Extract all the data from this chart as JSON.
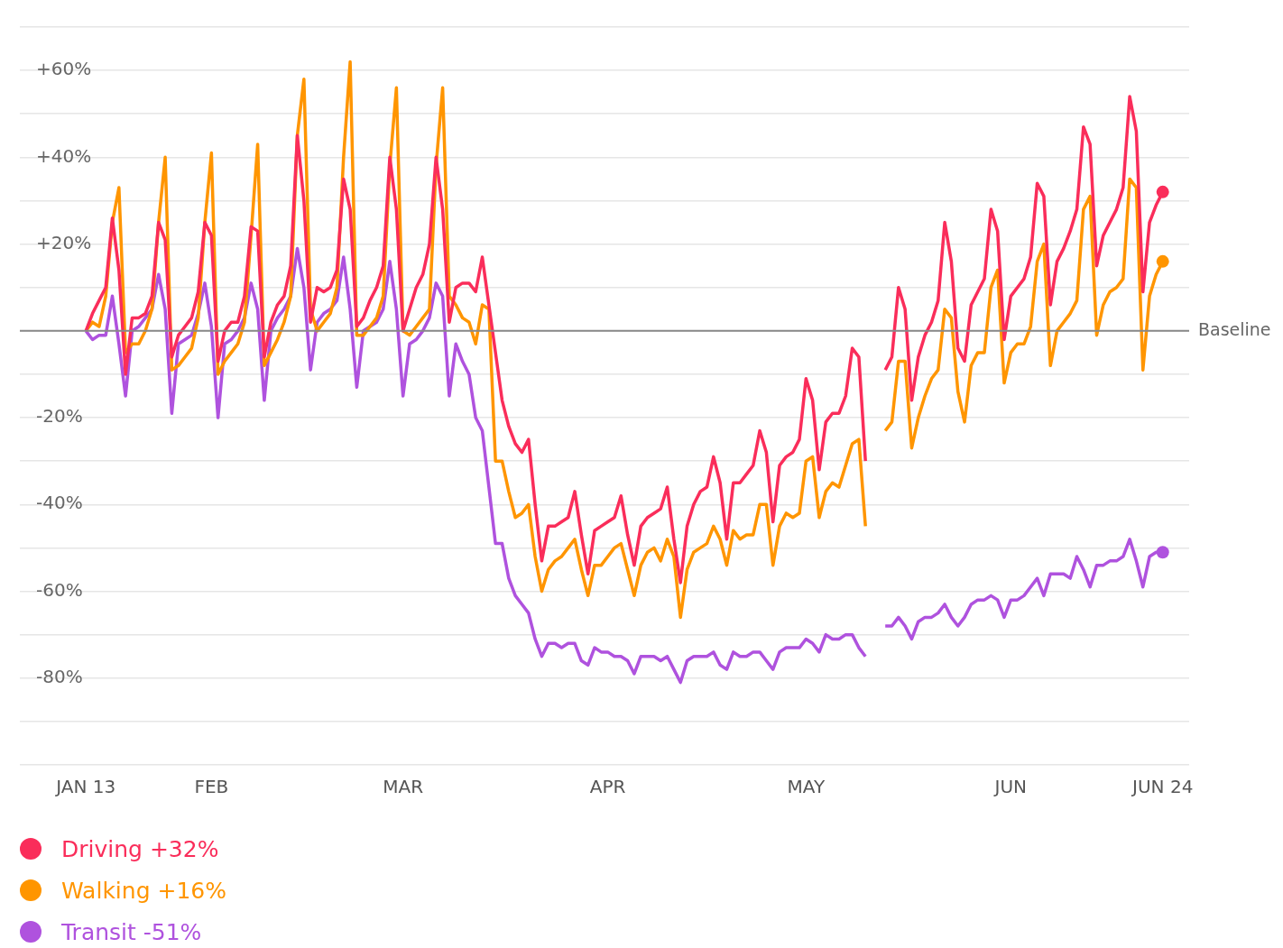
{
  "chart_data": {
    "type": "line",
    "x": [
      "--01-13",
      "--01-14",
      "--01-15",
      "--01-16",
      "--01-17",
      "--01-18",
      "--01-19",
      "--01-20",
      "--01-21",
      "--01-22",
      "--01-23",
      "--01-24",
      "--01-25",
      "--01-26",
      "--01-27",
      "--01-28",
      "--01-29",
      "--01-30",
      "--01-31",
      "--02-01",
      "--02-02",
      "--02-03",
      "--02-04",
      "--02-05",
      "--02-06",
      "--02-07",
      "--02-08",
      "--02-09",
      "--02-10",
      "--02-11",
      "--02-12",
      "--02-13",
      "--02-14",
      "--02-15",
      "--02-16",
      "--02-17",
      "--02-18",
      "--02-19",
      "--02-20",
      "--02-21",
      "--02-22",
      "--02-23",
      "--02-24",
      "--02-25",
      "--02-26",
      "--02-27",
      "--02-28",
      "--02-29",
      "--03-01",
      "--03-02",
      "--03-03",
      "--03-04",
      "--03-05",
      "--03-06",
      "--03-07",
      "--03-08",
      "--03-09",
      "--03-10",
      "--03-11",
      "--03-12",
      "--03-13",
      "--03-14",
      "--03-15",
      "--03-16",
      "--03-17",
      "--03-18",
      "--03-19",
      "--03-20",
      "--03-21",
      "--03-22",
      "--03-23",
      "--03-24",
      "--03-25",
      "--03-26",
      "--03-27",
      "--03-28",
      "--03-29",
      "--03-30",
      "--03-31",
      "--04-01",
      "--04-02",
      "--04-03",
      "--04-04",
      "--04-05",
      "--04-06",
      "--04-07",
      "--04-08",
      "--04-09",
      "--04-10",
      "--04-11",
      "--04-12",
      "--04-13",
      "--04-14",
      "--04-15",
      "--04-16",
      "--04-17",
      "--04-18",
      "--04-19",
      "--04-20",
      "--04-21",
      "--04-22",
      "--04-23",
      "--04-24",
      "--04-25",
      "--04-26",
      "--04-27",
      "--04-28",
      "--04-29",
      "--04-30",
      "--05-01",
      "--05-02",
      "--05-03",
      "--05-04",
      "--05-05",
      "--05-06",
      "--05-07",
      "--05-08",
      "--05-09",
      "--05-10",
      "--05-11",
      "--05-12",
      "--05-13",
      "--05-14",
      "--05-15",
      "--05-16",
      "--05-17",
      "--05-18",
      "--05-19",
      "--05-20",
      "--05-21",
      "--05-22",
      "--05-23",
      "--05-24",
      "--05-25",
      "--05-26",
      "--05-27",
      "--05-28",
      "--05-29",
      "--05-30",
      "--05-31",
      "--06-01",
      "--06-02",
      "--06-03",
      "--06-04",
      "--06-05",
      "--06-06",
      "--06-07",
      "--06-08",
      "--06-09",
      "--06-10",
      "--06-11",
      "--06-12",
      "--06-13",
      "--06-14",
      "--06-15",
      "--06-16",
      "--06-17",
      "--06-18",
      "--06-19",
      "--06-20",
      "--06-21",
      "--06-22",
      "--06-23",
      "--06-24"
    ],
    "series": [
      {
        "name": "Driving +32%",
        "color": "#fa2d5a",
        "values": [
          0,
          4,
          7,
          10,
          26,
          14,
          -10,
          3,
          3,
          4,
          8,
          25,
          21,
          -6,
          -1,
          1,
          3,
          9,
          25,
          22,
          -7,
          0,
          2,
          2,
          8,
          24,
          23,
          -6,
          2,
          6,
          8,
          15,
          45,
          30,
          2,
          10,
          9,
          10,
          14,
          35,
          28,
          1,
          3,
          7,
          10,
          15,
          40,
          28,
          0,
          5,
          10,
          13,
          20,
          40,
          28,
          2,
          10,
          11,
          11,
          9,
          17,
          6,
          -5,
          -16,
          -22,
          -26,
          -28,
          -25,
          -40,
          -53,
          -45,
          -45,
          -44,
          -43,
          -37,
          -47,
          -56,
          -46,
          -45,
          -44,
          -43,
          -38,
          -47,
          -54,
          -45,
          -43,
          -42,
          -41,
          -36,
          -48,
          -58,
          -45,
          -40,
          -37,
          -36,
          -29,
          -35,
          -48,
          -35,
          -35,
          -33,
          -31,
          -23,
          -28,
          -44,
          -31,
          -29,
          -28,
          -25,
          -11,
          -16,
          -32,
          -21,
          -19,
          -19,
          -15,
          -4,
          -6,
          -30,
          null,
          null,
          -9,
          -6,
          10,
          5,
          -16,
          -6,
          -1,
          2,
          7,
          25,
          16,
          -4,
          -7,
          6,
          9,
          12,
          28,
          23,
          -2,
          8,
          10,
          12,
          17,
          34,
          31,
          6,
          16,
          19,
          23,
          28,
          47,
          43,
          15,
          22,
          25,
          28,
          33,
          54,
          46,
          9,
          25,
          29,
          32
        ]
      },
      {
        "name": "Walking +16%",
        "color": "#ff9500",
        "values": [
          0,
          2,
          1,
          8,
          25,
          33,
          -5,
          -3,
          -3,
          0,
          5,
          25,
          40,
          -9,
          -8,
          -6,
          -4,
          3,
          25,
          41,
          -10,
          -7,
          -5,
          -3,
          2,
          22,
          43,
          -8,
          -5,
          -2,
          2,
          8,
          45,
          58,
          5,
          0,
          2,
          4,
          10,
          40,
          62,
          -1,
          -1,
          1,
          3,
          8,
          38,
          56,
          0,
          -1,
          1,
          3,
          5,
          38,
          56,
          8,
          6,
          3,
          2,
          -3,
          6,
          5,
          -30,
          -30,
          -37,
          -43,
          -42,
          -40,
          -52,
          -60,
          -55,
          -53,
          -52,
          -50,
          -48,
          -55,
          -61,
          -54,
          -54,
          -52,
          -50,
          -49,
          -55,
          -61,
          -54,
          -51,
          -50,
          -53,
          -48,
          -52,
          -66,
          -55,
          -51,
          -50,
          -49,
          -45,
          -48,
          -54,
          -46,
          -48,
          -47,
          -47,
          -40,
          -40,
          -54,
          -45,
          -42,
          -43,
          -42,
          -30,
          -29,
          -43,
          -37,
          -35,
          -36,
          -31,
          -26,
          -25,
          -45,
          null,
          null,
          -23,
          -21,
          -7,
          -7,
          -27,
          -20,
          -15,
          -11,
          -9,
          5,
          3,
          -14,
          -21,
          -8,
          -5,
          -5,
          10,
          14,
          -12,
          -5,
          -3,
          -3,
          1,
          16,
          20,
          -8,
          0,
          2,
          4,
          7,
          28,
          31,
          -1,
          6,
          9,
          10,
          12,
          35,
          33,
          -9,
          8,
          13,
          16
        ]
      },
      {
        "name": "Transit -51%",
        "color": "#af52de",
        "values": [
          0,
          -2,
          -1,
          -1,
          8,
          -3,
          -15,
          0,
          1,
          3,
          5,
          13,
          5,
          -19,
          -3,
          -2,
          -1,
          4,
          11,
          1,
          -20,
          -3,
          -2,
          0,
          3,
          11,
          5,
          -16,
          0,
          3,
          5,
          8,
          19,
          10,
          -9,
          2,
          4,
          5,
          7,
          17,
          5,
          -13,
          0,
          1,
          2,
          5,
          16,
          5,
          -15,
          -3,
          -2,
          0,
          3,
          11,
          8,
          -15,
          -3,
          -7,
          -10,
          -20,
          -23,
          -36,
          -49,
          -49,
          -57,
          -61,
          -63,
          -65,
          -71,
          -75,
          -72,
          -72,
          -73,
          -72,
          -72,
          -76,
          -77,
          -73,
          -74,
          -74,
          -75,
          -75,
          -76,
          -79,
          -75,
          -75,
          -75,
          -76,
          -75,
          -78,
          -81,
          -76,
          -75,
          -75,
          -75,
          -74,
          -77,
          -78,
          -74,
          -75,
          -75,
          -74,
          -74,
          -76,
          -78,
          -74,
          -73,
          -73,
          -73,
          -71,
          -72,
          -74,
          -70,
          -71,
          -71,
          -70,
          -70,
          -73,
          -75,
          null,
          null,
          -68,
          -68,
          -66,
          -68,
          -71,
          -67,
          -66,
          -66,
          -65,
          -63,
          -66,
          -68,
          -66,
          -63,
          -62,
          -62,
          -61,
          -62,
          -66,
          -62,
          -62,
          -61,
          -59,
          -57,
          -61,
          -56,
          -56,
          -56,
          -57,
          -52,
          -55,
          -59,
          -54,
          -54,
          -53,
          -53,
          -52,
          -48,
          -53,
          -59,
          -52,
          -51,
          -51
        ]
      }
    ],
    "xlim": [
      "--01-03",
      "--06-28"
    ],
    "xticks": [
      {
        "value": "--01-13",
        "label": "JAN 13"
      },
      {
        "value": "--02-01",
        "label": "FEB"
      },
      {
        "value": "--03-01",
        "label": "MAR"
      },
      {
        "value": "--04-01",
        "label": "APR"
      },
      {
        "value": "--05-01",
        "label": "MAY"
      },
      {
        "value": "--06-01",
        "label": "JUN"
      },
      {
        "value": "--06-24",
        "label": "JUN 24"
      }
    ],
    "ylim": [
      -100,
      70
    ],
    "yticks": [
      {
        "value": -100,
        "label": null
      },
      {
        "value": -90,
        "label": null
      },
      {
        "value": -80,
        "label": "-80%"
      },
      {
        "value": -70,
        "label": null
      },
      {
        "value": -60,
        "label": "-60%"
      },
      {
        "value": -50,
        "label": null
      },
      {
        "value": -40,
        "label": "-40%"
      },
      {
        "value": -30,
        "label": null
      },
      {
        "value": -20,
        "label": "-20%"
      },
      {
        "value": -10,
        "label": null
      },
      {
        "value": 0,
        "label": null
      },
      {
        "value": 10,
        "label": null
      },
      {
        "value": 20,
        "label": "+20%"
      },
      {
        "value": 30,
        "label": null
      },
      {
        "value": 40,
        "label": "+40%"
      },
      {
        "value": 50,
        "label": null
      },
      {
        "value": 60,
        "label": "+60%"
      },
      {
        "value": 70,
        "label": null
      }
    ],
    "ref_lines": [
      {
        "axis": "y",
        "value": 0,
        "label": "Baseline",
        "color": "#888888"
      }
    ],
    "grid": "y",
    "legend": "bottom left",
    "line_style": "solid"
  }
}
